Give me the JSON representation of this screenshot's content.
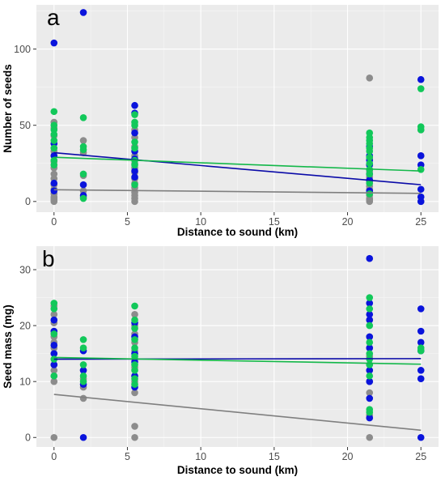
{
  "colors": {
    "gray_series": "#8c8c8c",
    "blue_series": "#0a14dc",
    "green_series": "#12c85a",
    "gray_line": "#7f7f7f",
    "blue_line": "#0a0aa8",
    "green_line": "#14b84a"
  },
  "chart_data": [
    {
      "type": "scatter",
      "panel_label": "a",
      "title": "",
      "xlabel": "Distance to sound (km)",
      "ylabel": "Number of seeds",
      "xlim": [
        -1.2,
        26.2
      ],
      "ylim": [
        -7,
        129
      ],
      "x_ticks": [
        0,
        5,
        10,
        15,
        20,
        25
      ],
      "y_ticks": [
        0,
        50,
        100
      ],
      "grid": true,
      "legend": "none",
      "series": [
        {
          "color": "gray",
          "points": [
            [
              0,
              0
            ],
            [
              0,
              1
            ],
            [
              0,
              2
            ],
            [
              0,
              3
            ],
            [
              0,
              5
            ],
            [
              0,
              8
            ],
            [
              0,
              11
            ],
            [
              0,
              15
            ],
            [
              0,
              18
            ],
            [
              0,
              22
            ],
            [
              0,
              26
            ],
            [
              0,
              30
            ],
            [
              0,
              33
            ],
            [
              0,
              38
            ],
            [
              0,
              43
            ],
            [
              0,
              48
            ],
            [
              0,
              52
            ],
            [
              2,
              3
            ],
            [
              2,
              7
            ],
            [
              2,
              17
            ],
            [
              2,
              32
            ],
            [
              2,
              40
            ],
            [
              5.5,
              0
            ],
            [
              5.5,
              2
            ],
            [
              5.5,
              4
            ],
            [
              5.5,
              6
            ],
            [
              5.5,
              9
            ],
            [
              5.5,
              12
            ],
            [
              5.5,
              15
            ],
            [
              5.5,
              19
            ],
            [
              5.5,
              22
            ],
            [
              5.5,
              25
            ],
            [
              5.5,
              30
            ],
            [
              5.5,
              36
            ],
            [
              5.5,
              42
            ],
            [
              5.5,
              47
            ],
            [
              21.5,
              0
            ],
            [
              21.5,
              1
            ],
            [
              21.5,
              2
            ],
            [
              21.5,
              4
            ],
            [
              21.5,
              6
            ],
            [
              21.5,
              8
            ],
            [
              21.5,
              10
            ],
            [
              21.5,
              13
            ],
            [
              21.5,
              16
            ],
            [
              21.5,
              20
            ],
            [
              21.5,
              24
            ],
            [
              21.5,
              28
            ],
            [
              21.5,
              81
            ],
            [
              25,
              0
            ],
            [
              25,
              30
            ],
            [
              25,
              47
            ]
          ]
        },
        {
          "color": "blue",
          "points": [
            [
              0,
              104
            ],
            [
              0,
              38
            ],
            [
              0,
              30
            ],
            [
              0,
              12
            ],
            [
              0,
              7
            ],
            [
              2,
              124
            ],
            [
              2,
              11
            ],
            [
              2,
              4
            ],
            [
              5.5,
              63
            ],
            [
              5.5,
              58
            ],
            [
              5.5,
              45
            ],
            [
              5.5,
              33
            ],
            [
              5.5,
              28
            ],
            [
              5.5,
              20
            ],
            [
              5.5,
              16
            ],
            [
              21.5,
              36
            ],
            [
              21.5,
              30
            ],
            [
              21.5,
              27
            ],
            [
              21.5,
              24
            ],
            [
              21.5,
              18
            ],
            [
              21.5,
              14
            ],
            [
              21.5,
              7
            ],
            [
              25,
              80
            ],
            [
              25,
              30
            ],
            [
              25,
              24
            ],
            [
              25,
              8
            ],
            [
              25,
              3
            ],
            [
              25,
              0
            ]
          ]
        },
        {
          "color": "green",
          "points": [
            [
              0,
              59
            ],
            [
              0,
              50
            ],
            [
              0,
              47
            ],
            [
              0,
              44
            ],
            [
              0,
              40
            ],
            [
              0,
              35
            ],
            [
              0,
              27
            ],
            [
              0,
              24
            ],
            [
              2,
              55
            ],
            [
              2,
              36
            ],
            [
              2,
              34
            ],
            [
              2,
              18
            ],
            [
              2,
              2
            ],
            [
              5.5,
              57
            ],
            [
              5.5,
              52
            ],
            [
              5.5,
              50
            ],
            [
              5.5,
              39
            ],
            [
              5.5,
              35
            ],
            [
              5.5,
              27
            ],
            [
              5.5,
              24
            ],
            [
              5.5,
              11
            ],
            [
              21.5,
              45
            ],
            [
              21.5,
              42
            ],
            [
              21.5,
              40
            ],
            [
              21.5,
              38
            ],
            [
              21.5,
              35
            ],
            [
              21.5,
              33
            ],
            [
              21.5,
              29
            ],
            [
              21.5,
              25
            ],
            [
              21.5,
              21
            ],
            [
              21.5,
              18
            ],
            [
              21.5,
              12
            ],
            [
              21.5,
              5
            ],
            [
              25,
              74
            ],
            [
              25,
              49
            ],
            [
              25,
              47
            ],
            [
              25,
              21
            ]
          ]
        }
      ],
      "trend_lines": [
        {
          "color": "gray",
          "x": [
            0,
            25
          ],
          "y": [
            7.7,
            5.3
          ]
        },
        {
          "color": "blue",
          "x": [
            0,
            25
          ],
          "y": [
            32,
            11
          ]
        },
        {
          "color": "green",
          "x": [
            0,
            25
          ],
          "y": [
            29,
            20
          ]
        }
      ]
    },
    {
      "type": "scatter",
      "panel_label": "b",
      "title": "",
      "xlabel": "Distance to sound (km)",
      "ylabel": "Seed mass (mg)",
      "xlim": [
        -1.2,
        26.2
      ],
      "ylim": [
        -1.7,
        34.2
      ],
      "x_ticks": [
        0,
        5,
        10,
        15,
        20,
        25
      ],
      "y_ticks": [
        0,
        10,
        20,
        30
      ],
      "grid": true,
      "legend": "none",
      "series": [
        {
          "color": "gray",
          "points": [
            [
              0,
              0
            ],
            [
              0,
              10
            ],
            [
              0,
              11
            ],
            [
              0,
              12
            ],
            [
              0,
              13
            ],
            [
              0,
              14
            ],
            [
              0,
              15
            ],
            [
              0,
              16
            ],
            [
              0,
              17
            ],
            [
              0,
              18
            ],
            [
              0,
              19
            ],
            [
              0,
              20.5
            ],
            [
              0,
              22
            ],
            [
              0,
              23.5
            ],
            [
              2,
              7
            ],
            [
              2,
              9
            ],
            [
              2,
              10.5
            ],
            [
              2,
              12
            ],
            [
              5.5,
              0
            ],
            [
              5.5,
              2
            ],
            [
              5.5,
              8
            ],
            [
              5.5,
              10
            ],
            [
              5.5,
              11
            ],
            [
              5.5,
              12.5
            ],
            [
              5.5,
              14
            ],
            [
              5.5,
              15.5
            ],
            [
              5.5,
              17
            ],
            [
              5.5,
              18.5
            ],
            [
              5.5,
              20
            ],
            [
              5.5,
              22
            ],
            [
              21.5,
              0
            ],
            [
              21.5,
              4
            ],
            [
              21.5,
              8
            ],
            [
              21.5,
              10
            ],
            [
              21.5,
              12
            ],
            [
              21.5,
              13
            ],
            [
              21.5,
              14.5
            ],
            [
              21.5,
              16
            ],
            [
              21.5,
              18
            ],
            [
              21.5,
              21
            ]
          ]
        },
        {
          "color": "blue",
          "points": [
            [
              0,
              13
            ],
            [
              0,
              15
            ],
            [
              0,
              16.5
            ],
            [
              0,
              19
            ],
            [
              0,
              21
            ],
            [
              2,
              0
            ],
            [
              2,
              9.5
            ],
            [
              2,
              12
            ],
            [
              2,
              15.5
            ],
            [
              5.5,
              9
            ],
            [
              5.5,
              11
            ],
            [
              5.5,
              13.5
            ],
            [
              5.5,
              15
            ],
            [
              5.5,
              18
            ],
            [
              5.5,
              20.5
            ],
            [
              21.5,
              32
            ],
            [
              21.5,
              24
            ],
            [
              21.5,
              22
            ],
            [
              21.5,
              21
            ],
            [
              21.5,
              18
            ],
            [
              21.5,
              16
            ],
            [
              21.5,
              12
            ],
            [
              21.5,
              10
            ],
            [
              21.5,
              7
            ],
            [
              21.5,
              3.5
            ],
            [
              25,
              23
            ],
            [
              25,
              19
            ],
            [
              25,
              17
            ],
            [
              25,
              15.5
            ],
            [
              25,
              12
            ],
            [
              25,
              10.5
            ],
            [
              25,
              0
            ]
          ]
        },
        {
          "color": "green",
          "points": [
            [
              0,
              24
            ],
            [
              0,
              23
            ],
            [
              0,
              18.5
            ],
            [
              0,
              14
            ],
            [
              0,
              11
            ],
            [
              2,
              17.5
            ],
            [
              2,
              16
            ],
            [
              2,
              13
            ],
            [
              2,
              11
            ],
            [
              2,
              10
            ],
            [
              5.5,
              23.5
            ],
            [
              5.5,
              21
            ],
            [
              5.5,
              19.5
            ],
            [
              5.5,
              17.5
            ],
            [
              5.5,
              16
            ],
            [
              5.5,
              14.5
            ],
            [
              5.5,
              13
            ],
            [
              5.5,
              12
            ],
            [
              5.5,
              10.5
            ],
            [
              5.5,
              9.5
            ],
            [
              21.5,
              25
            ],
            [
              21.5,
              23
            ],
            [
              21.5,
              20
            ],
            [
              21.5,
              17
            ],
            [
              21.5,
              15
            ],
            [
              21.5,
              14
            ],
            [
              21.5,
              13
            ],
            [
              21.5,
              11
            ],
            [
              21.5,
              5
            ],
            [
              21.5,
              4.5
            ],
            [
              25,
              16
            ],
            [
              25,
              15.5
            ]
          ]
        }
      ],
      "trend_lines": [
        {
          "color": "gray",
          "x": [
            0,
            25
          ],
          "y": [
            7.7,
            1.3
          ]
        },
        {
          "color": "blue",
          "x": [
            0,
            25
          ],
          "y": [
            14,
            14.1
          ]
        },
        {
          "color": "green",
          "x": [
            0,
            25
          ],
          "y": [
            14.3,
            13.1
          ]
        }
      ]
    }
  ]
}
